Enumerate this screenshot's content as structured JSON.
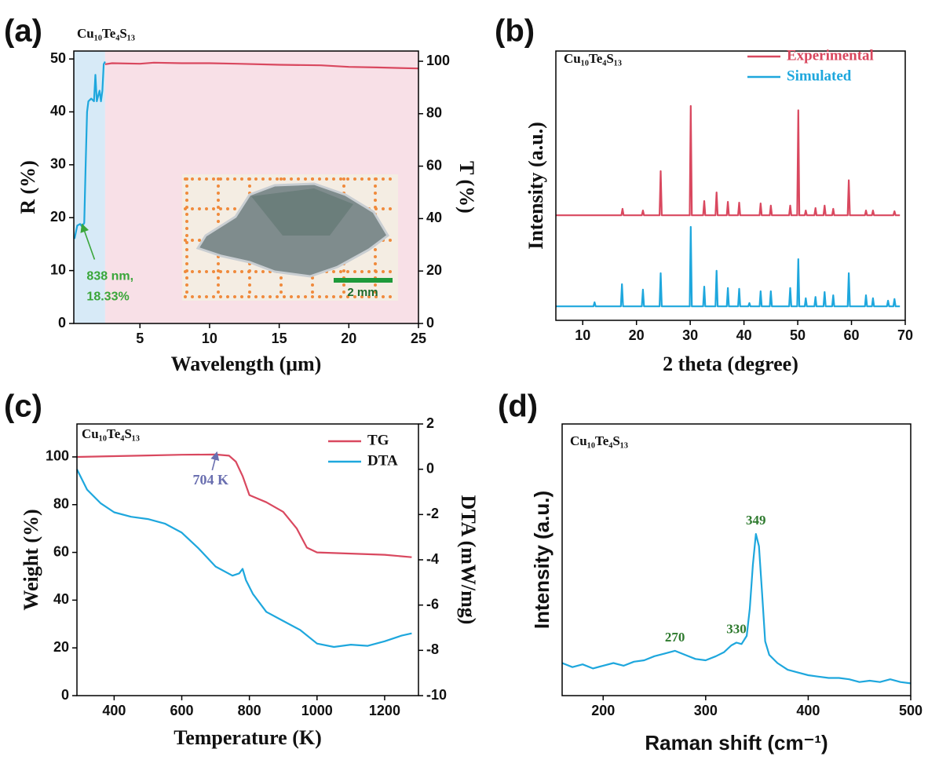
{
  "chart_data": [
    {
      "type": "line",
      "panel_label": "(a)",
      "title": "Cu₁₀Te₄S₁₃",
      "xlabel": "Wavelength (μm)",
      "ylabel": "R (%)",
      "y2label": "T (%)",
      "xlim": [
        0.25,
        25
      ],
      "xticks": [
        5,
        10,
        15,
        20,
        25
      ],
      "ylim": [
        0,
        51.5
      ],
      "yticks": [
        0,
        10,
        20,
        30,
        40,
        50
      ],
      "y2lim": [
        0,
        103.9
      ],
      "y2ticks": [
        0,
        20,
        40,
        60,
        80,
        100
      ],
      "shade": [
        "#d7eaf7",
        "#f8e0e7"
      ],
      "series": [
        {
          "color": "#1ea7dd",
          "x": [
            0.3,
            0.5,
            0.7,
            0.838,
            1.0,
            1.1,
            1.2,
            1.3,
            1.5,
            1.7,
            1.8,
            1.9,
            2.0,
            2.1,
            2.2,
            2.3,
            2.4,
            2.5
          ],
          "values": [
            16,
            18.5,
            18.8,
            18.33,
            19,
            30,
            40,
            42,
            42.5,
            42,
            47,
            42,
            43,
            44,
            42,
            44,
            49,
            49.5
          ]
        },
        {
          "color": "#d9485f",
          "x": [
            2.5,
            3,
            5,
            6,
            8,
            10,
            12,
            15,
            18,
            20,
            22,
            25
          ],
          "values": [
            49,
            49.2,
            49.1,
            49.3,
            49.2,
            49.2,
            49.1,
            48.9,
            48.8,
            48.5,
            48.4,
            48.2
          ]
        }
      ],
      "annotations": [
        {
          "text": [
            "838 nm,",
            "18.33%"
          ],
          "x": 0.838,
          "y": 18.33,
          "color": "#3aa63a"
        }
      ],
      "scale_label": "2 mm"
    },
    {
      "type": "line",
      "panel_label": "(b)",
      "title": "Cu₁₀Te₄S₁₃",
      "xlabel": "2 theta (degree)",
      "ylabel": "Intensity (a.u.)",
      "xlim": [
        5,
        70
      ],
      "xticks": [
        10,
        20,
        30,
        40,
        50,
        60,
        70
      ],
      "ylim": [
        0,
        100
      ],
      "legend": "upper right",
      "series": [
        {
          "name": "Experimental",
          "color": "#d9485f",
          "x": [
            5,
            17.2,
            17.4,
            17.6,
            21,
            21.2,
            21.4,
            24.3,
            24.5,
            24.7,
            29.9,
            30.1,
            30.3,
            32.4,
            32.6,
            32.8,
            34.7,
            34.9,
            35.1,
            36.8,
            37,
            37.2,
            38.9,
            39.1,
            39.3,
            42.9,
            43.1,
            43.3,
            44.8,
            45,
            45.2,
            48.4,
            48.6,
            48.8,
            49.9,
            50.1,
            50.3,
            51.3,
            51.5,
            51.7,
            53.1,
            53.3,
            53.5,
            54.8,
            55,
            55.2,
            56.4,
            56.6,
            56.8,
            59.3,
            59.5,
            59.7,
            62.5,
            62.7,
            62.9,
            63.8,
            64,
            64.2,
            67.8,
            68,
            68.2,
            69
          ],
          "values": [
            39,
            39,
            41.4,
            39,
            39,
            40.8,
            39,
            39,
            55.4,
            39,
            39,
            79.6,
            39,
            39,
            44.3,
            39,
            39,
            47.5,
            39,
            39,
            44,
            39,
            39,
            43.7,
            39,
            39,
            43.4,
            39,
            39,
            42.6,
            39,
            39,
            42.6,
            39,
            39,
            78,
            39,
            39,
            40.8,
            39,
            39,
            41.7,
            39,
            39,
            42.6,
            39,
            39,
            41.4,
            39,
            39,
            52,
            39,
            39,
            40.8,
            39,
            39,
            40.8,
            39,
            39,
            40.5,
            39,
            39
          ]
        },
        {
          "name": "Simulated",
          "color": "#1ea7dd",
          "x": [
            5,
            12,
            12.2,
            12.4,
            17.1,
            17.3,
            17.5,
            21,
            21.2,
            21.4,
            24.3,
            24.5,
            24.7,
            29.9,
            30.1,
            30.3,
            32.4,
            32.6,
            32.8,
            34.7,
            34.9,
            35.1,
            36.8,
            37,
            37.2,
            38.9,
            39.1,
            39.3,
            40.8,
            41,
            41.2,
            42.9,
            43.1,
            43.3,
            44.8,
            45,
            45.2,
            48.4,
            48.6,
            48.8,
            49.9,
            50.1,
            50.3,
            51.3,
            51.5,
            51.7,
            53.1,
            53.3,
            53.5,
            54.8,
            55,
            55.2,
            56.4,
            56.6,
            56.8,
            59.3,
            59.5,
            59.7,
            62.5,
            62.7,
            62.9,
            63.8,
            64,
            64.2,
            66.6,
            66.8,
            67,
            67.8,
            68,
            68.2,
            69
          ],
          "values": [
            5.2,
            5.2,
            6.7,
            5.2,
            5.2,
            13.4,
            5.2,
            5.2,
            11.4,
            5.2,
            5.2,
            17.5,
            5.2,
            5.2,
            34.7,
            5.2,
            5.2,
            12.5,
            5.2,
            5.2,
            18.4,
            5.2,
            5.2,
            12,
            5.2,
            5.2,
            11.7,
            5.2,
            5.2,
            6.4,
            5.2,
            5.2,
            10.8,
            5.2,
            5.2,
            10.8,
            5.2,
            5.2,
            12,
            5.2,
            5.2,
            22.7,
            5.2,
            5.2,
            8.2,
            5.2,
            5.2,
            8.7,
            5.2,
            5.2,
            10.5,
            5.2,
            5.2,
            9.3,
            5.2,
            5.2,
            17.5,
            5.2,
            5.2,
            9.3,
            5.2,
            5.2,
            8.2,
            5.2,
            5.2,
            7.3,
            5.2,
            5.2,
            7.9,
            5.2,
            5.2
          ]
        }
      ]
    },
    {
      "type": "line",
      "panel_label": "(c)",
      "title": "Cu₁₀Te₄S₁₃",
      "xlabel": "Temperature (K)",
      "ylabel": "Weight (%)",
      "y2label": "DTA (mW/mg)",
      "xlim": [
        290,
        1300
      ],
      "xticks": [
        400,
        600,
        800,
        1000,
        1200
      ],
      "ylim": [
        0,
        113.8
      ],
      "yticks": [
        0,
        20,
        40,
        60,
        80,
        100
      ],
      "y2lim": [
        -10,
        2
      ],
      "y2ticks": [
        -10,
        -8,
        -6,
        -4,
        -2,
        0,
        2
      ],
      "legend": "upper right",
      "series": [
        {
          "name": "TG",
          "color": "#d9485f",
          "x": [
            290,
            400,
            500,
            600,
            700,
            740,
            760,
            780,
            800,
            850,
            900,
            940,
            970,
            1000,
            1100,
            1200,
            1280
          ],
          "values": [
            100,
            100.3,
            100.6,
            100.9,
            101,
            100.5,
            98,
            92,
            84,
            81,
            77,
            70,
            62,
            60,
            59.5,
            59,
            58
          ]
        },
        {
          "name": "DTA",
          "color": "#1ea7dd",
          "axis": "y2",
          "x": [
            290,
            320,
            360,
            400,
            450,
            500,
            550,
            600,
            650,
            700,
            750,
            770,
            780,
            790,
            810,
            850,
            900,
            950,
            1000,
            1050,
            1100,
            1150,
            1200,
            1250,
            1280
          ],
          "values": [
            0,
            -0.9,
            -1.5,
            -1.9,
            -2.1,
            -2.2,
            -2.4,
            -2.8,
            -3.5,
            -4.3,
            -4.7,
            -4.6,
            -4.4,
            -4.9,
            -5.5,
            -6.3,
            -6.7,
            -7.1,
            -7.7,
            -7.85,
            -7.75,
            -7.8,
            -7.6,
            -7.35,
            -7.25
          ]
        }
      ],
      "annotations": [
        {
          "text": [
            "704 K"
          ],
          "x": 704,
          "y": 101,
          "color": "#6a6fb0"
        }
      ]
    },
    {
      "type": "line",
      "panel_label": "(d)",
      "title": "Cu₁₀Te₄S₁₃",
      "xlabel": "Raman shift (cm⁻¹)",
      "ylabel": "Intensity (a.u.)",
      "xlim": [
        160,
        500
      ],
      "xticks": [
        200,
        300,
        400,
        500
      ],
      "ylim": [
        0,
        100
      ],
      "series": [
        {
          "color": "#1ea7dd",
          "x": [
            160,
            170,
            180,
            190,
            200,
            210,
            220,
            230,
            240,
            250,
            260,
            270,
            280,
            290,
            300,
            310,
            318,
            325,
            330,
            335,
            340,
            343,
            346,
            349,
            352,
            355,
            358,
            362,
            370,
            380,
            390,
            400,
            410,
            420,
            430,
            440,
            450,
            460,
            470,
            480,
            490,
            500
          ],
          "values": [
            12,
            10.5,
            11.5,
            10,
            11,
            12,
            11,
            12.5,
            13,
            14.5,
            15.5,
            16.5,
            15,
            13.5,
            13,
            14.5,
            16,
            18.5,
            19.5,
            19,
            22,
            32,
            48,
            59.5,
            55,
            38,
            20,
            15,
            12,
            9.5,
            8.5,
            7.5,
            7,
            6.5,
            6.5,
            6,
            5,
            5.5,
            5,
            6,
            5,
            4.5
          ]
        }
      ],
      "peak_labels": [
        {
          "x": 270,
          "label": "270"
        },
        {
          "x": 330,
          "label": "330"
        },
        {
          "x": 349,
          "label": "349"
        }
      ]
    }
  ]
}
